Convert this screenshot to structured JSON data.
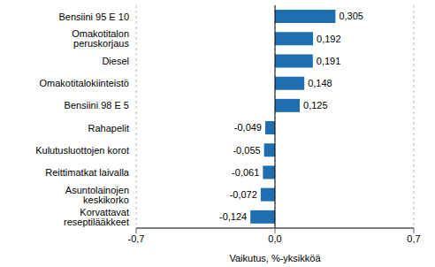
{
  "chart_data": {
    "type": "bar",
    "orientation": "horizontal",
    "categories": [
      "Bensiini 95 E 10",
      "Omakotitalon peruskorjaus",
      "Diesel",
      "Omakotitalokiinteistö",
      "Bensiini 98 E 5",
      "Rahapelit",
      "Kulutusluottojen korot",
      "Reittimatkat laivalla",
      "Asuntolainojen keskikorko",
      "Korvattavat reseptilääkkeet"
    ],
    "values": [
      0.305,
      0.192,
      0.191,
      0.148,
      0.125,
      -0.049,
      -0.055,
      -0.061,
      -0.072,
      -0.124
    ],
    "value_labels": [
      "0,305",
      "0,192",
      "0,191",
      "0,148",
      "0,125",
      "-0,049",
      "-0,055",
      "-0,061",
      "-0,072",
      "-0,124"
    ],
    "data_labels": true,
    "color": "#1f6fb0",
    "xlabel": "Vaikutus, %-yksikköä",
    "xlim": [
      -0.7,
      0.7
    ],
    "xticks": [
      {
        "value": -0.7,
        "label": "-0,7"
      },
      {
        "value": 0,
        "label": "0,0"
      },
      {
        "value": 0.7,
        "label": "0,7"
      }
    ],
    "grid": true
  }
}
